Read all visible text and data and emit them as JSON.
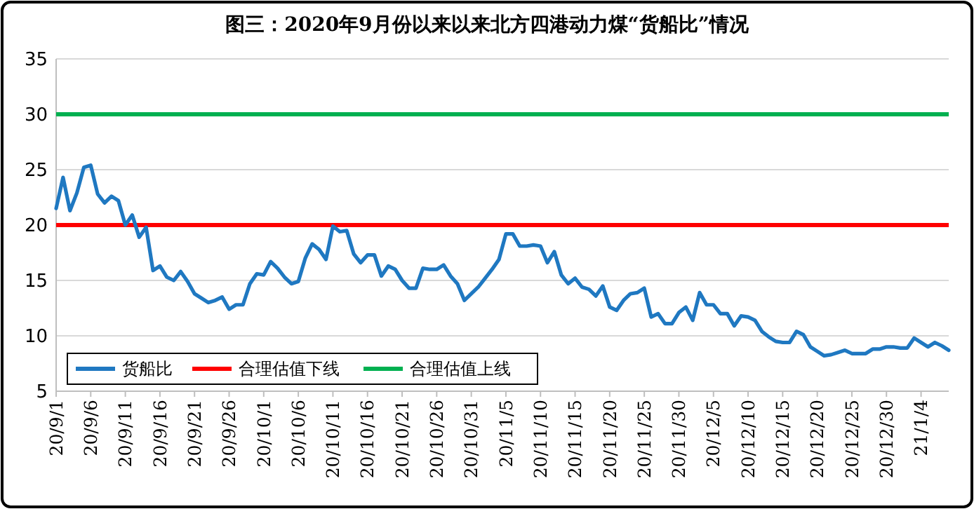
{
  "chart_data": {
    "type": "line",
    "title": "图三：2020年9月份以来以来北方四港动力煤“货船比”情况",
    "x": [
      "2020-09-01",
      "2020-09-02",
      "2020-09-03",
      "2020-09-04",
      "2020-09-05",
      "2020-09-06",
      "2020-09-07",
      "2020-09-08",
      "2020-09-09",
      "2020-09-10",
      "2020-09-11",
      "2020-09-12",
      "2020-09-13",
      "2020-09-14",
      "2020-09-15",
      "2020-09-16",
      "2020-09-17",
      "2020-09-18",
      "2020-09-19",
      "2020-09-20",
      "2020-09-21",
      "2020-09-22",
      "2020-09-23",
      "2020-09-24",
      "2020-09-25",
      "2020-09-26",
      "2020-09-27",
      "2020-09-28",
      "2020-09-29",
      "2020-09-30",
      "2020-10-01",
      "2020-10-02",
      "2020-10-03",
      "2020-10-04",
      "2020-10-05",
      "2020-10-06",
      "2020-10-07",
      "2020-10-08",
      "2020-10-09",
      "2020-10-10",
      "2020-10-11",
      "2020-10-12",
      "2020-10-13",
      "2020-10-14",
      "2020-10-15",
      "2020-10-16",
      "2020-10-17",
      "2020-10-18",
      "2020-10-19",
      "2020-10-20",
      "2020-10-21",
      "2020-10-22",
      "2020-10-23",
      "2020-10-24",
      "2020-10-25",
      "2020-10-26",
      "2020-10-27",
      "2020-10-28",
      "2020-10-29",
      "2020-10-30",
      "2020-10-31",
      "2020-11-01",
      "2020-11-02",
      "2020-11-03",
      "2020-11-04",
      "2020-11-05",
      "2020-11-06",
      "2020-11-07",
      "2020-11-08",
      "2020-11-09",
      "2020-11-10",
      "2020-11-11",
      "2020-11-12",
      "2020-11-13",
      "2020-11-14",
      "2020-11-15",
      "2020-11-16",
      "2020-11-17",
      "2020-11-18",
      "2020-11-19",
      "2020-11-20",
      "2020-11-21",
      "2020-11-22",
      "2020-11-23",
      "2020-11-24",
      "2020-11-25",
      "2020-11-26",
      "2020-11-27",
      "2020-11-28",
      "2020-11-29",
      "2020-11-30",
      "2020-12-01",
      "2020-12-02",
      "2020-12-03",
      "2020-12-04",
      "2020-12-05",
      "2020-12-06",
      "2020-12-07",
      "2020-12-08",
      "2020-12-09",
      "2020-12-10",
      "2020-12-11",
      "2020-12-12",
      "2020-12-13",
      "2020-12-14",
      "2020-12-15",
      "2020-12-16",
      "2020-12-17",
      "2020-12-18",
      "2020-12-19",
      "2020-12-20",
      "2020-12-21",
      "2020-12-22",
      "2020-12-23",
      "2020-12-24",
      "2020-12-25",
      "2020-12-26",
      "2020-12-27",
      "2020-12-28",
      "2020-12-29",
      "2020-12-30",
      "2020-12-31",
      "2021-01-01",
      "2021-01-02",
      "2021-01-03",
      "2021-01-04",
      "2021-01-05",
      "2021-01-06",
      "2021-01-07",
      "2021-01-08"
    ],
    "series": [
      {
        "name": "货船比",
        "color": "#1f78c1",
        "values": [
          21.5,
          24.3,
          21.3,
          22.9,
          25.2,
          25.4,
          22.8,
          22.0,
          22.6,
          22.2,
          20.0,
          20.9,
          18.9,
          19.8,
          15.9,
          16.3,
          15.3,
          15.0,
          15.8,
          14.9,
          13.8,
          13.4,
          13.0,
          13.2,
          13.5,
          12.4,
          12.8,
          12.8,
          14.7,
          15.6,
          15.5,
          16.7,
          16.1,
          15.3,
          14.7,
          14.9,
          17.0,
          18.3,
          17.8,
          16.9,
          19.9,
          19.4,
          19.5,
          17.4,
          16.6,
          17.3,
          17.3,
          15.4,
          16.3,
          16.0,
          15.0,
          14.3,
          14.3,
          16.1,
          16.0,
          16.0,
          16.4,
          15.4,
          14.7,
          13.2,
          13.8,
          14.4,
          15.2,
          16.0,
          16.9,
          19.2,
          19.2,
          18.1,
          18.1,
          18.2,
          18.1,
          16.6,
          17.6,
          15.5,
          14.7,
          15.2,
          14.4,
          14.2,
          13.6,
          14.5,
          12.6,
          12.3,
          13.2,
          13.8,
          13.9,
          14.3,
          11.7,
          12.0,
          11.1,
          11.1,
          12.1,
          12.6,
          11.4,
          13.9,
          12.8,
          12.8,
          12.0,
          12.0,
          10.9,
          11.8,
          11.7,
          11.4,
          10.4,
          9.9,
          9.5,
          9.4,
          9.4,
          10.4,
          10.1,
          9.0,
          8.6,
          8.2,
          8.3,
          8.5,
          8.7,
          8.4,
          8.4,
          8.4,
          8.8,
          8.8,
          9.0,
          9.0,
          8.9,
          8.9,
          9.8,
          9.4,
          9.0,
          9.4,
          9.1,
          8.7
        ]
      }
    ],
    "ref_lines": [
      {
        "axis": "y",
        "value": 20,
        "label": "合理估值下线",
        "color": "#ff0000"
      },
      {
        "axis": "y",
        "value": 30,
        "label": "合理估值上线",
        "color": "#00b050"
      }
    ],
    "xlim": [
      "2020-09-01",
      "2021-01-08"
    ],
    "xticks": [
      {
        "value": "2020-09-01",
        "label": "20/9/1"
      },
      {
        "value": "2020-09-06",
        "label": "20/9/6"
      },
      {
        "value": "2020-09-11",
        "label": "20/9/11"
      },
      {
        "value": "2020-09-16",
        "label": "20/9/16"
      },
      {
        "value": "2020-09-21",
        "label": "20/9/21"
      },
      {
        "value": "2020-09-26",
        "label": "20/9/26"
      },
      {
        "value": "2020-10-01",
        "label": "20/10/1"
      },
      {
        "value": "2020-10-06",
        "label": "20/10/6"
      },
      {
        "value": "2020-10-11",
        "label": "20/10/11"
      },
      {
        "value": "2020-10-16",
        "label": "20/10/16"
      },
      {
        "value": "2020-10-21",
        "label": "20/10/21"
      },
      {
        "value": "2020-10-26",
        "label": "20/10/26"
      },
      {
        "value": "2020-10-31",
        "label": "20/10/31"
      },
      {
        "value": "2020-11-05",
        "label": "20/11/5"
      },
      {
        "value": "2020-11-10",
        "label": "20/11/10"
      },
      {
        "value": "2020-11-15",
        "label": "20/11/15"
      },
      {
        "value": "2020-11-20",
        "label": "20/11/20"
      },
      {
        "value": "2020-11-25",
        "label": "20/11/25"
      },
      {
        "value": "2020-11-30",
        "label": "20/11/30"
      },
      {
        "value": "2020-12-05",
        "label": "20/12/5"
      },
      {
        "value": "2020-12-10",
        "label": "20/12/10"
      },
      {
        "value": "2020-12-15",
        "label": "20/12/15"
      },
      {
        "value": "2020-12-20",
        "label": "20/12/20"
      },
      {
        "value": "2020-12-25",
        "label": "20/12/25"
      },
      {
        "value": "2020-12-30",
        "label": "20/12/30"
      },
      {
        "value": "2021-01-04",
        "label": "21/1/4"
      }
    ],
    "ylim": [
      5,
      35
    ],
    "yticks": [
      5,
      10,
      15,
      20,
      25,
      30,
      35
    ],
    "grid": "y",
    "legend": "bottom left",
    "marker": "none",
    "line_style": "solid"
  }
}
